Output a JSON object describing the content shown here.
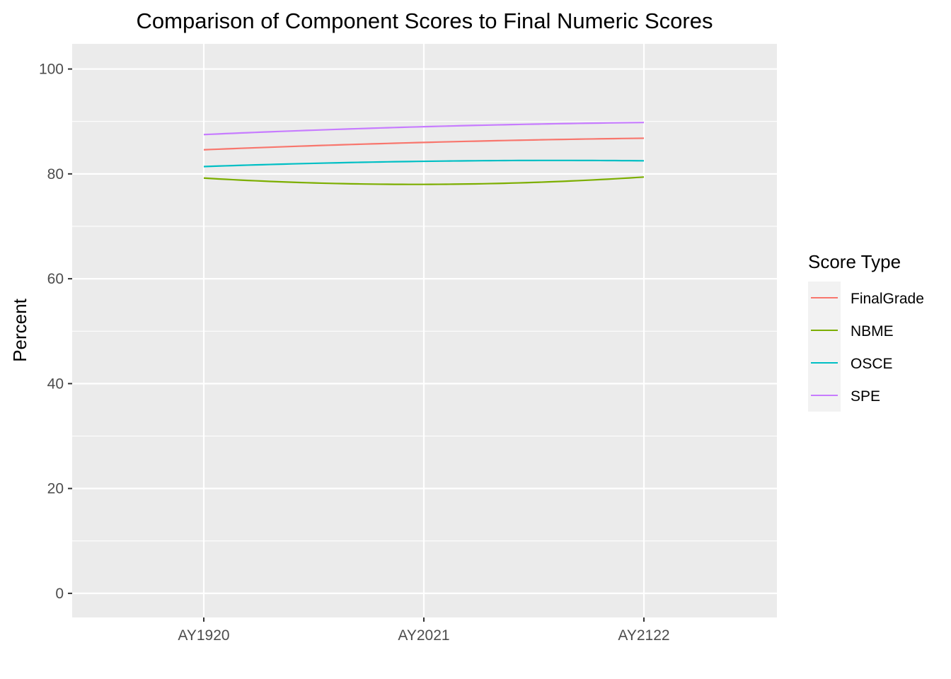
{
  "chart_data": {
    "type": "line",
    "title": "Comparison of Component Scores to Final Numeric Scores",
    "xlabel": "",
    "ylabel": "Percent",
    "categories": [
      "AY1920",
      "AY2021",
      "AY2122"
    ],
    "ylim": [
      -4.6,
      104.8
    ],
    "yticks": [
      0,
      20,
      40,
      60,
      80,
      100
    ],
    "grid": true,
    "smooth": true,
    "background": "#ebebeb",
    "series": [
      {
        "name": "FinalGrade",
        "color": "#F8766D",
        "values": [
          84.6,
          86.0,
          86.8
        ]
      },
      {
        "name": "NBME",
        "color": "#7CAE00",
        "values": [
          79.2,
          78.0,
          79.4
        ]
      },
      {
        "name": "OSCE",
        "color": "#00BFC4",
        "values": [
          81.4,
          82.4,
          82.5
        ]
      },
      {
        "name": "SPE",
        "color": "#C77CFF",
        "values": [
          87.5,
          89.0,
          89.8
        ]
      }
    ],
    "legend": {
      "title": "Score Type",
      "position": "right"
    }
  }
}
